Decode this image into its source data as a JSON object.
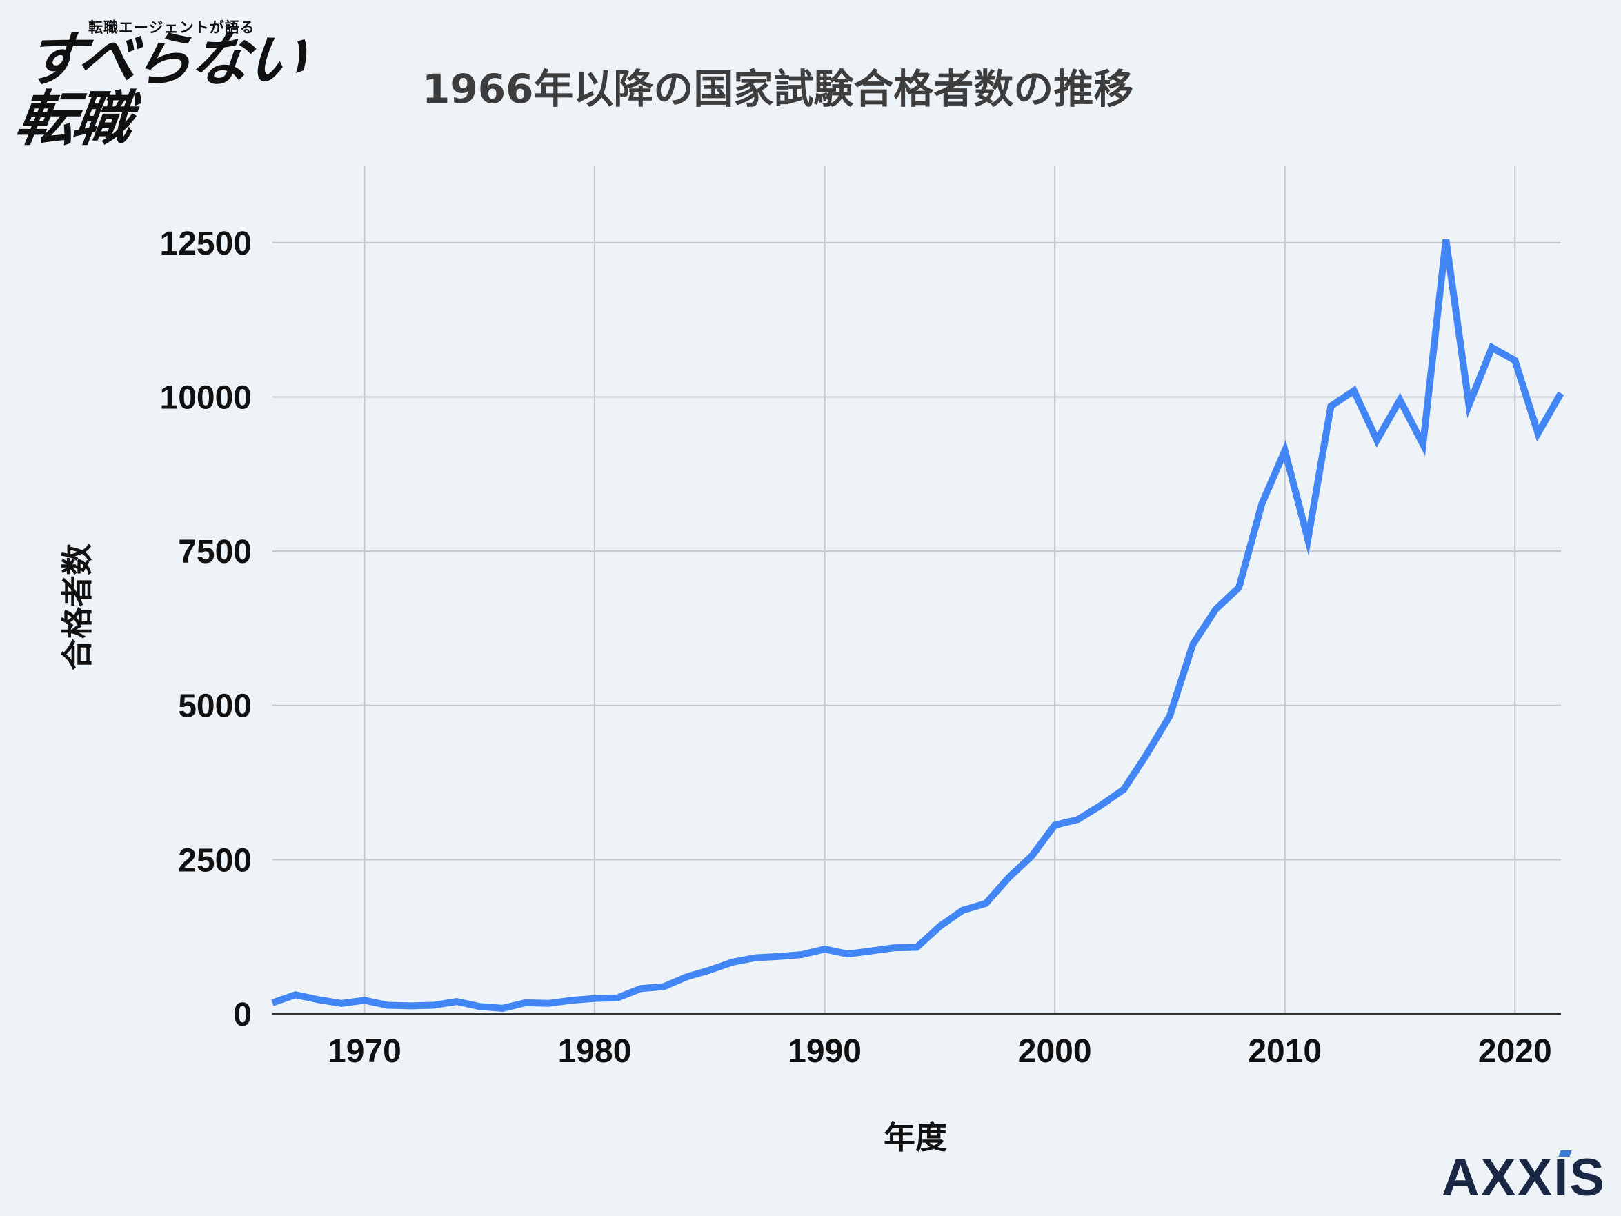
{
  "logo": {
    "subtitle": "転職エージェントが語る",
    "main": "すべらない転職"
  },
  "title": "1966年以降の国家試験合格者数の推移",
  "brand": "AXXIS",
  "colors": {
    "background": "#eef3f8",
    "line": "#4285f4",
    "grid": "#c4c7cc",
    "text": "#111111"
  },
  "chart_data": {
    "type": "line",
    "xlabel": "年度",
    "ylabel": "合格者数",
    "xlim": [
      1966,
      2022
    ],
    "ylim": [
      0,
      13750
    ],
    "x_ticks": [
      1970,
      1980,
      1990,
      2000,
      2010,
      2020
    ],
    "y_ticks": [
      0,
      2500,
      5000,
      7500,
      10000,
      12500
    ],
    "grid": true,
    "legend": "none",
    "series": [
      {
        "color": "#4285f4",
        "points": [
          [
            1966,
            180
          ],
          [
            1967,
            310
          ],
          [
            1968,
            230
          ],
          [
            1969,
            170
          ],
          [
            1970,
            220
          ],
          [
            1971,
            140
          ],
          [
            1972,
            130
          ],
          [
            1973,
            140
          ],
          [
            1974,
            200
          ],
          [
            1975,
            120
          ],
          [
            1976,
            90
          ],
          [
            1977,
            180
          ],
          [
            1978,
            170
          ],
          [
            1979,
            220
          ],
          [
            1980,
            250
          ],
          [
            1981,
            260
          ],
          [
            1982,
            410
          ],
          [
            1983,
            440
          ],
          [
            1984,
            600
          ],
          [
            1985,
            710
          ],
          [
            1986,
            840
          ],
          [
            1987,
            910
          ],
          [
            1988,
            930
          ],
          [
            1989,
            960
          ],
          [
            1990,
            1050
          ],
          [
            1991,
            970
          ],
          [
            1992,
            1020
          ],
          [
            1993,
            1070
          ],
          [
            1994,
            1080
          ],
          [
            1995,
            1420
          ],
          [
            1996,
            1680
          ],
          [
            1997,
            1790
          ],
          [
            1998,
            2210
          ],
          [
            1999,
            2560
          ],
          [
            2000,
            3060
          ],
          [
            2001,
            3150
          ],
          [
            2002,
            3380
          ],
          [
            2003,
            3640
          ],
          [
            2004,
            4210
          ],
          [
            2005,
            4830
          ],
          [
            2006,
            5990
          ],
          [
            2007,
            6560
          ],
          [
            2008,
            6910
          ],
          [
            2009,
            8270
          ],
          [
            2010,
            9130
          ],
          [
            2011,
            7690
          ],
          [
            2012,
            9850
          ],
          [
            2013,
            10100
          ],
          [
            2014,
            9300
          ],
          [
            2015,
            9950
          ],
          [
            2016,
            9230
          ],
          [
            2017,
            12550
          ],
          [
            2018,
            9870
          ],
          [
            2019,
            10800
          ],
          [
            2020,
            10590
          ],
          [
            2021,
            9410
          ],
          [
            2022,
            10060
          ]
        ]
      }
    ]
  }
}
